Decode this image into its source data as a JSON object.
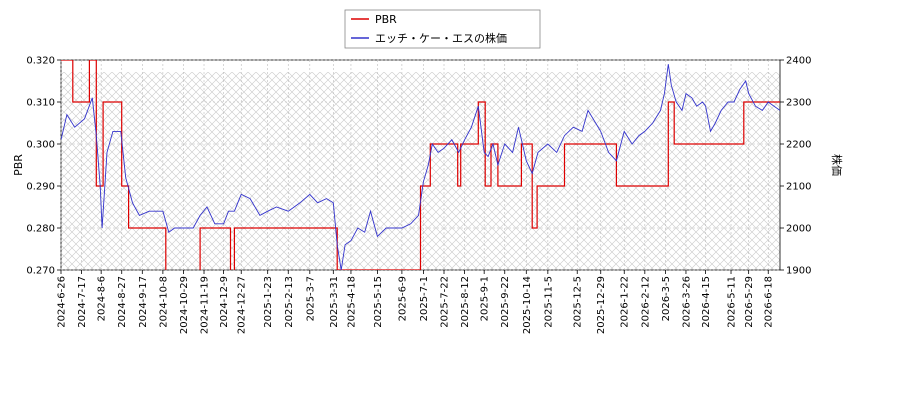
{
  "chart_data": {
    "type": "line",
    "xlabel": "",
    "ylabel": "PBR",
    "ylabel_right": "株価",
    "ylim": [
      0.27,
      0.32
    ],
    "ylim_right": [
      1900,
      2400
    ],
    "y_ticks": [
      "0.270",
      "0.280",
      "0.290",
      "0.300",
      "0.310",
      "0.320"
    ],
    "y_ticks_right": [
      "1900",
      "2000",
      "2100",
      "2200",
      "2300",
      "2400"
    ],
    "x_range": [
      "2024-06-26",
      "2026-06-30"
    ],
    "x_ticks": [
      "2024-6-26",
      "2024-7-17",
      "2024-8-6",
      "2024-8-27",
      "2024-9-17",
      "2024-10-8",
      "2024-10-29",
      "2024-11-19",
      "2024-12-9",
      "2024-12-27",
      "2025-1-23",
      "2025-2-13",
      "2025-3-7",
      "2025-3-31",
      "2025-4-18",
      "2025-5-15",
      "2025-6-9",
      "2025-7-1",
      "2025-7-22",
      "2025-8-12",
      "2025-9-1",
      "2025-9-22",
      "2025-10-14",
      "2025-11-5",
      "2025-12-5",
      "2025-12-29",
      "2026-1-22",
      "2026-2-12",
      "2026-3-5",
      "2026-3-26",
      "2026-4-15",
      "2026-5-11",
      "2026-5-29",
      "2026-6-18"
    ],
    "grid": true,
    "legend_position": "top-center",
    "series": [
      {
        "name": "PBR",
        "color": "#dd0000",
        "axis": "left",
        "points": [
          [
            "2024-06-26",
            0.32
          ],
          [
            "2024-07-08",
            0.32
          ],
          [
            "2024-07-08",
            0.31
          ],
          [
            "2024-07-25",
            0.31
          ],
          [
            "2024-07-25",
            0.32
          ],
          [
            "2024-08-01",
            0.32
          ],
          [
            "2024-08-01",
            0.29
          ],
          [
            "2024-08-08",
            0.29
          ],
          [
            "2024-08-08",
            0.31
          ],
          [
            "2024-08-27",
            0.31
          ],
          [
            "2024-08-27",
            0.29
          ],
          [
            "2024-09-03",
            0.29
          ],
          [
            "2024-09-03",
            0.28
          ],
          [
            "2024-09-24",
            0.28
          ],
          [
            "2024-09-24",
            0.28
          ],
          [
            "2024-10-11",
            0.28
          ],
          [
            "2024-10-11",
            0.265
          ],
          [
            "2024-11-15",
            0.265
          ],
          [
            "2024-11-15",
            0.28
          ],
          [
            "2024-12-16",
            0.28
          ],
          [
            "2024-12-16",
            0.265
          ],
          [
            "2024-12-20",
            0.265
          ],
          [
            "2024-12-20",
            0.28
          ],
          [
            "2025-04-04",
            0.28
          ],
          [
            "2025-04-04",
            0.27
          ],
          [
            "2025-06-28",
            0.27
          ],
          [
            "2025-06-28",
            0.29
          ],
          [
            "2025-07-08",
            0.29
          ],
          [
            "2025-07-08",
            0.3
          ],
          [
            "2025-08-05",
            0.3
          ],
          [
            "2025-08-05",
            0.29
          ],
          [
            "2025-08-08",
            0.29
          ],
          [
            "2025-08-08",
            0.3
          ],
          [
            "2025-08-26",
            0.3
          ],
          [
            "2025-08-26",
            0.31
          ],
          [
            "2025-09-02",
            0.31
          ],
          [
            "2025-09-02",
            0.29
          ],
          [
            "2025-09-08",
            0.29
          ],
          [
            "2025-09-08",
            0.3
          ],
          [
            "2025-09-15",
            0.3
          ],
          [
            "2025-09-15",
            0.29
          ],
          [
            "2025-10-09",
            0.29
          ],
          [
            "2025-10-09",
            0.3
          ],
          [
            "2025-10-20",
            0.3
          ],
          [
            "2025-10-20",
            0.28
          ],
          [
            "2025-10-25",
            0.28
          ],
          [
            "2025-10-25",
            0.29
          ],
          [
            "2025-11-22",
            0.29
          ],
          [
            "2025-11-22",
            0.3
          ],
          [
            "2026-01-14",
            0.3
          ],
          [
            "2026-01-14",
            0.29
          ],
          [
            "2026-03-08",
            0.29
          ],
          [
            "2026-03-08",
            0.31
          ],
          [
            "2026-03-14",
            0.31
          ],
          [
            "2026-03-14",
            0.3
          ],
          [
            "2026-05-24",
            0.3
          ],
          [
            "2026-05-24",
            0.31
          ],
          [
            "2026-06-30",
            0.31
          ]
        ]
      },
      {
        "name": "エッチ・ケー・エスの株価",
        "color": "#3333cc",
        "axis": "right",
        "points": [
          [
            "2024-06-26",
            2210
          ],
          [
            "2024-07-02",
            2270
          ],
          [
            "2024-07-10",
            2240
          ],
          [
            "2024-07-20",
            2260
          ],
          [
            "2024-07-28",
            2310
          ],
          [
            "2024-08-01",
            2220
          ],
          [
            "2024-08-05",
            2100
          ],
          [
            "2024-08-07",
            2000
          ],
          [
            "2024-08-12",
            2180
          ],
          [
            "2024-08-18",
            2230
          ],
          [
            "2024-08-26",
            2230
          ],
          [
            "2024-08-31",
            2120
          ],
          [
            "2024-09-07",
            2060
          ],
          [
            "2024-09-14",
            2030
          ],
          [
            "2024-09-24",
            2040
          ],
          [
            "2024-10-02",
            2040
          ],
          [
            "2024-10-08",
            2040
          ],
          [
            "2024-10-14",
            1990
          ],
          [
            "2024-10-20",
            2000
          ],
          [
            "2024-10-29",
            2000
          ],
          [
            "2024-11-08",
            2000
          ],
          [
            "2024-11-15",
            2030
          ],
          [
            "2024-11-22",
            2050
          ],
          [
            "2024-11-30",
            2010
          ],
          [
            "2024-12-09",
            2010
          ],
          [
            "2024-12-14",
            2040
          ],
          [
            "2024-12-20",
            2040
          ],
          [
            "2024-12-27",
            2080
          ],
          [
            "2025-01-05",
            2070
          ],
          [
            "2025-01-15",
            2030
          ],
          [
            "2025-01-23",
            2040
          ],
          [
            "2025-02-01",
            2050
          ],
          [
            "2025-02-13",
            2040
          ],
          [
            "2025-02-25",
            2060
          ],
          [
            "2025-03-07",
            2080
          ],
          [
            "2025-03-15",
            2060
          ],
          [
            "2025-03-24",
            2070
          ],
          [
            "2025-03-31",
            2060
          ],
          [
            "2025-04-04",
            1960
          ],
          [
            "2025-04-08",
            1900
          ],
          [
            "2025-04-12",
            1960
          ],
          [
            "2025-04-18",
            1970
          ],
          [
            "2025-04-25",
            2000
          ],
          [
            "2025-05-02",
            1990
          ],
          [
            "2025-05-08",
            2040
          ],
          [
            "2025-05-15",
            1980
          ],
          [
            "2025-05-24",
            2000
          ],
          [
            "2025-06-01",
            2000
          ],
          [
            "2025-06-09",
            2000
          ],
          [
            "2025-06-18",
            2010
          ],
          [
            "2025-06-26",
            2030
          ],
          [
            "2025-07-01",
            2110
          ],
          [
            "2025-07-06",
            2150
          ],
          [
            "2025-07-10",
            2200
          ],
          [
            "2025-07-16",
            2180
          ],
          [
            "2025-07-22",
            2190
          ],
          [
            "2025-07-30",
            2210
          ],
          [
            "2025-08-06",
            2180
          ],
          [
            "2025-08-12",
            2210
          ],
          [
            "2025-08-19",
            2240
          ],
          [
            "2025-08-26",
            2290
          ],
          [
            "2025-09-01",
            2180
          ],
          [
            "2025-09-05",
            2170
          ],
          [
            "2025-09-10",
            2200
          ],
          [
            "2025-09-15",
            2150
          ],
          [
            "2025-09-22",
            2200
          ],
          [
            "2025-09-30",
            2180
          ],
          [
            "2025-10-06",
            2240
          ],
          [
            "2025-10-10",
            2200
          ],
          [
            "2025-10-14",
            2160
          ],
          [
            "2025-10-20",
            2130
          ],
          [
            "2025-10-26",
            2180
          ],
          [
            "2025-11-05",
            2200
          ],
          [
            "2025-11-14",
            2180
          ],
          [
            "2025-11-22",
            2220
          ],
          [
            "2025-12-01",
            2240
          ],
          [
            "2025-12-10",
            2230
          ],
          [
            "2025-12-16",
            2280
          ],
          [
            "2025-12-29",
            2230
          ],
          [
            "2026-01-06",
            2180
          ],
          [
            "2026-01-14",
            2160
          ],
          [
            "2026-01-22",
            2230
          ],
          [
            "2026-01-30",
            2200
          ],
          [
            "2026-02-06",
            2220
          ],
          [
            "2026-02-12",
            2230
          ],
          [
            "2026-02-20",
            2250
          ],
          [
            "2026-02-28",
            2280
          ],
          [
            "2026-03-04",
            2320
          ],
          [
            "2026-03-08",
            2390
          ],
          [
            "2026-03-11",
            2340
          ],
          [
            "2026-03-16",
            2300
          ],
          [
            "2026-03-22",
            2280
          ],
          [
            "2026-03-26",
            2320
          ],
          [
            "2026-04-01",
            2310
          ],
          [
            "2026-04-06",
            2290
          ],
          [
            "2026-04-12",
            2300
          ],
          [
            "2026-04-15",
            2290
          ],
          [
            "2026-04-20",
            2230
          ],
          [
            "2026-04-25",
            2250
          ],
          [
            "2026-05-01",
            2280
          ],
          [
            "2026-05-08",
            2300
          ],
          [
            "2026-05-14",
            2300
          ],
          [
            "2026-05-20",
            2330
          ],
          [
            "2026-05-26",
            2350
          ],
          [
            "2026-05-29",
            2320
          ],
          [
            "2026-06-05",
            2290
          ],
          [
            "2026-06-12",
            2280
          ],
          [
            "2026-06-18",
            2300
          ],
          [
            "2026-06-24",
            2290
          ],
          [
            "2026-06-30",
            2280
          ]
        ]
      }
    ]
  }
}
